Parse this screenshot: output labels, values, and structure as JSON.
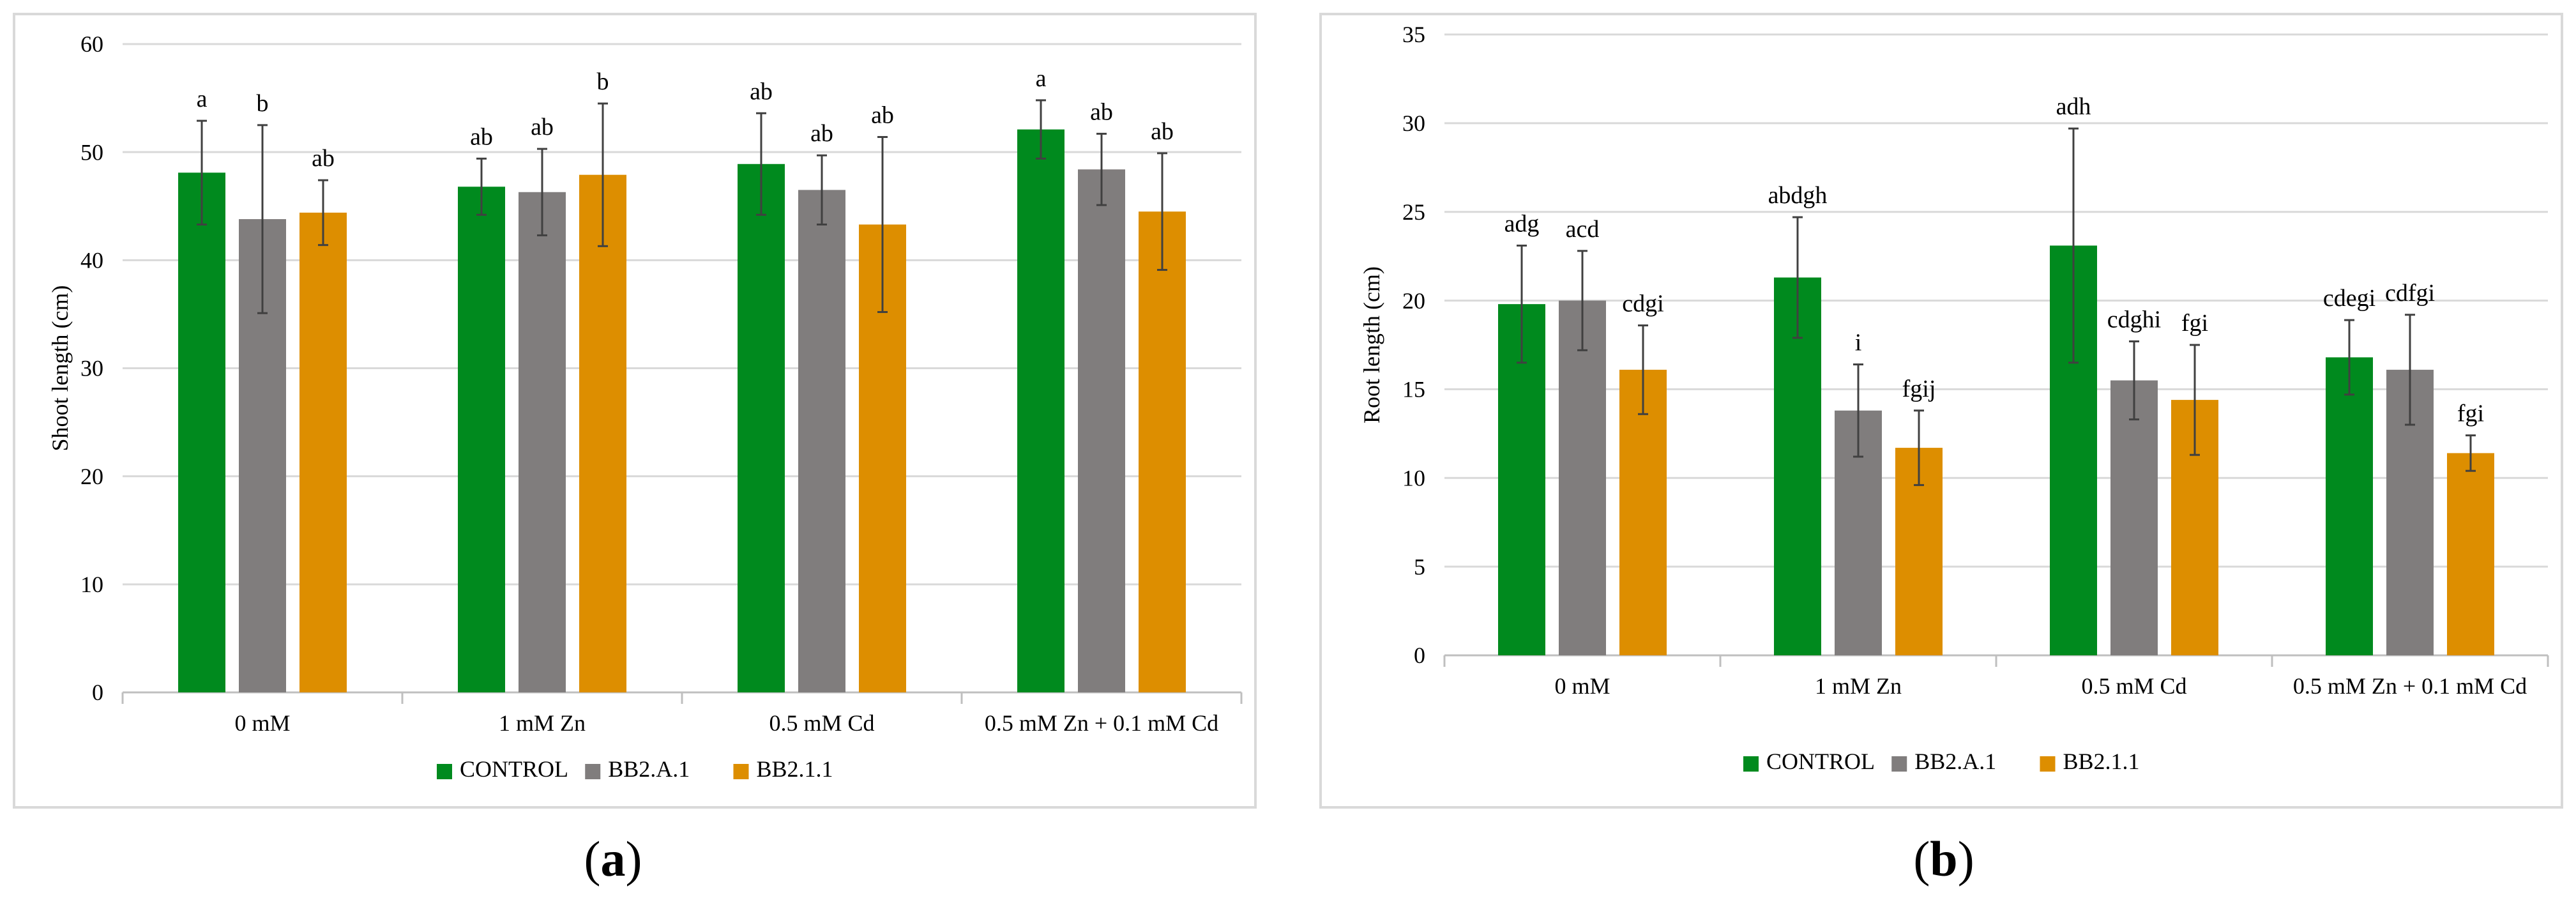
{
  "colors": {
    "CONTROL": "#008a1e",
    "BB2.A.1": "#807d7d",
    "BB2.1.1": "#dd8e00",
    "grid": "#d9d9d9",
    "axis": "#bfbfbf",
    "errorbar": "#404040"
  },
  "captions": {
    "a_open": "(",
    "a_letter": "a",
    "a_close": ")",
    "b_open": "(",
    "b_letter": "b",
    "b_close": ")"
  },
  "chart_data": [
    {
      "type": "bar",
      "title": "",
      "xlabel": "",
      "ylabel": "Shoot length (cm)",
      "ylim": [
        0,
        60
      ],
      "yticks": [
        0,
        10,
        20,
        30,
        40,
        50,
        60
      ],
      "ytick_labels": [
        "0",
        "10",
        "20",
        "30",
        "40",
        "50",
        "60"
      ],
      "grid": true,
      "legend_position": "bottom",
      "categories": [
        "0 mM",
        "1 mM Zn",
        "0.5 mM Cd",
        "0.5 mM Zn + 0.1 mM Cd"
      ],
      "series": [
        {
          "name": "CONTROL",
          "values": [
            48.1,
            46.8,
            48.9,
            52.1
          ],
          "errors": [
            4.8,
            2.6,
            4.7,
            2.7
          ],
          "labels": [
            "a",
            "ab",
            "ab",
            "a"
          ]
        },
        {
          "name": "BB2.A.1",
          "values": [
            43.8,
            46.3,
            46.5,
            48.4
          ],
          "errors": [
            8.7,
            4.0,
            3.2,
            3.3
          ],
          "labels": [
            "b",
            "ab",
            "ab",
            "ab"
          ]
        },
        {
          "name": "BB2.1.1",
          "values": [
            44.4,
            47.9,
            43.3,
            44.5
          ],
          "errors": [
            3.0,
            6.6,
            8.1,
            5.4
          ],
          "labels": [
            "ab",
            "b",
            "ab",
            "ab"
          ]
        }
      ]
    },
    {
      "type": "bar",
      "title": "",
      "xlabel": "",
      "ylabel": "Root length (cm)",
      "ylim": [
        0,
        35
      ],
      "yticks": [
        0,
        5,
        10,
        15,
        20,
        25,
        30,
        35
      ],
      "ytick_labels": [
        "0",
        "5",
        "10",
        "15",
        "20",
        "25",
        "30",
        "35"
      ],
      "grid": true,
      "legend_position": "bottom",
      "categories": [
        "0 mM",
        "1 mM Zn",
        "0.5 mM Cd",
        "0.5 mM Zn + 0.1 mM Cd"
      ],
      "series": [
        {
          "name": "CONTROL",
          "values": [
            19.8,
            21.3,
            23.1,
            16.8
          ],
          "errors": [
            3.3,
            3.4,
            6.6,
            2.1
          ],
          "labels": [
            "adg",
            "abdgh",
            "adh",
            "cdegi"
          ]
        },
        {
          "name": "BB2.A.1",
          "values": [
            20.0,
            13.8,
            15.5,
            16.1
          ],
          "errors": [
            2.8,
            2.6,
            2.2,
            3.1
          ],
          "labels": [
            "acd",
            "i",
            "cdghi",
            "cdfgi"
          ]
        },
        {
          "name": "BB2.1.1",
          "values": [
            16.1,
            11.7,
            14.4,
            11.4
          ],
          "errors": [
            2.5,
            2.1,
            3.1,
            1.0
          ],
          "labels": [
            "cdgi",
            "fgij",
            "fgi",
            "fgi"
          ]
        }
      ]
    }
  ]
}
